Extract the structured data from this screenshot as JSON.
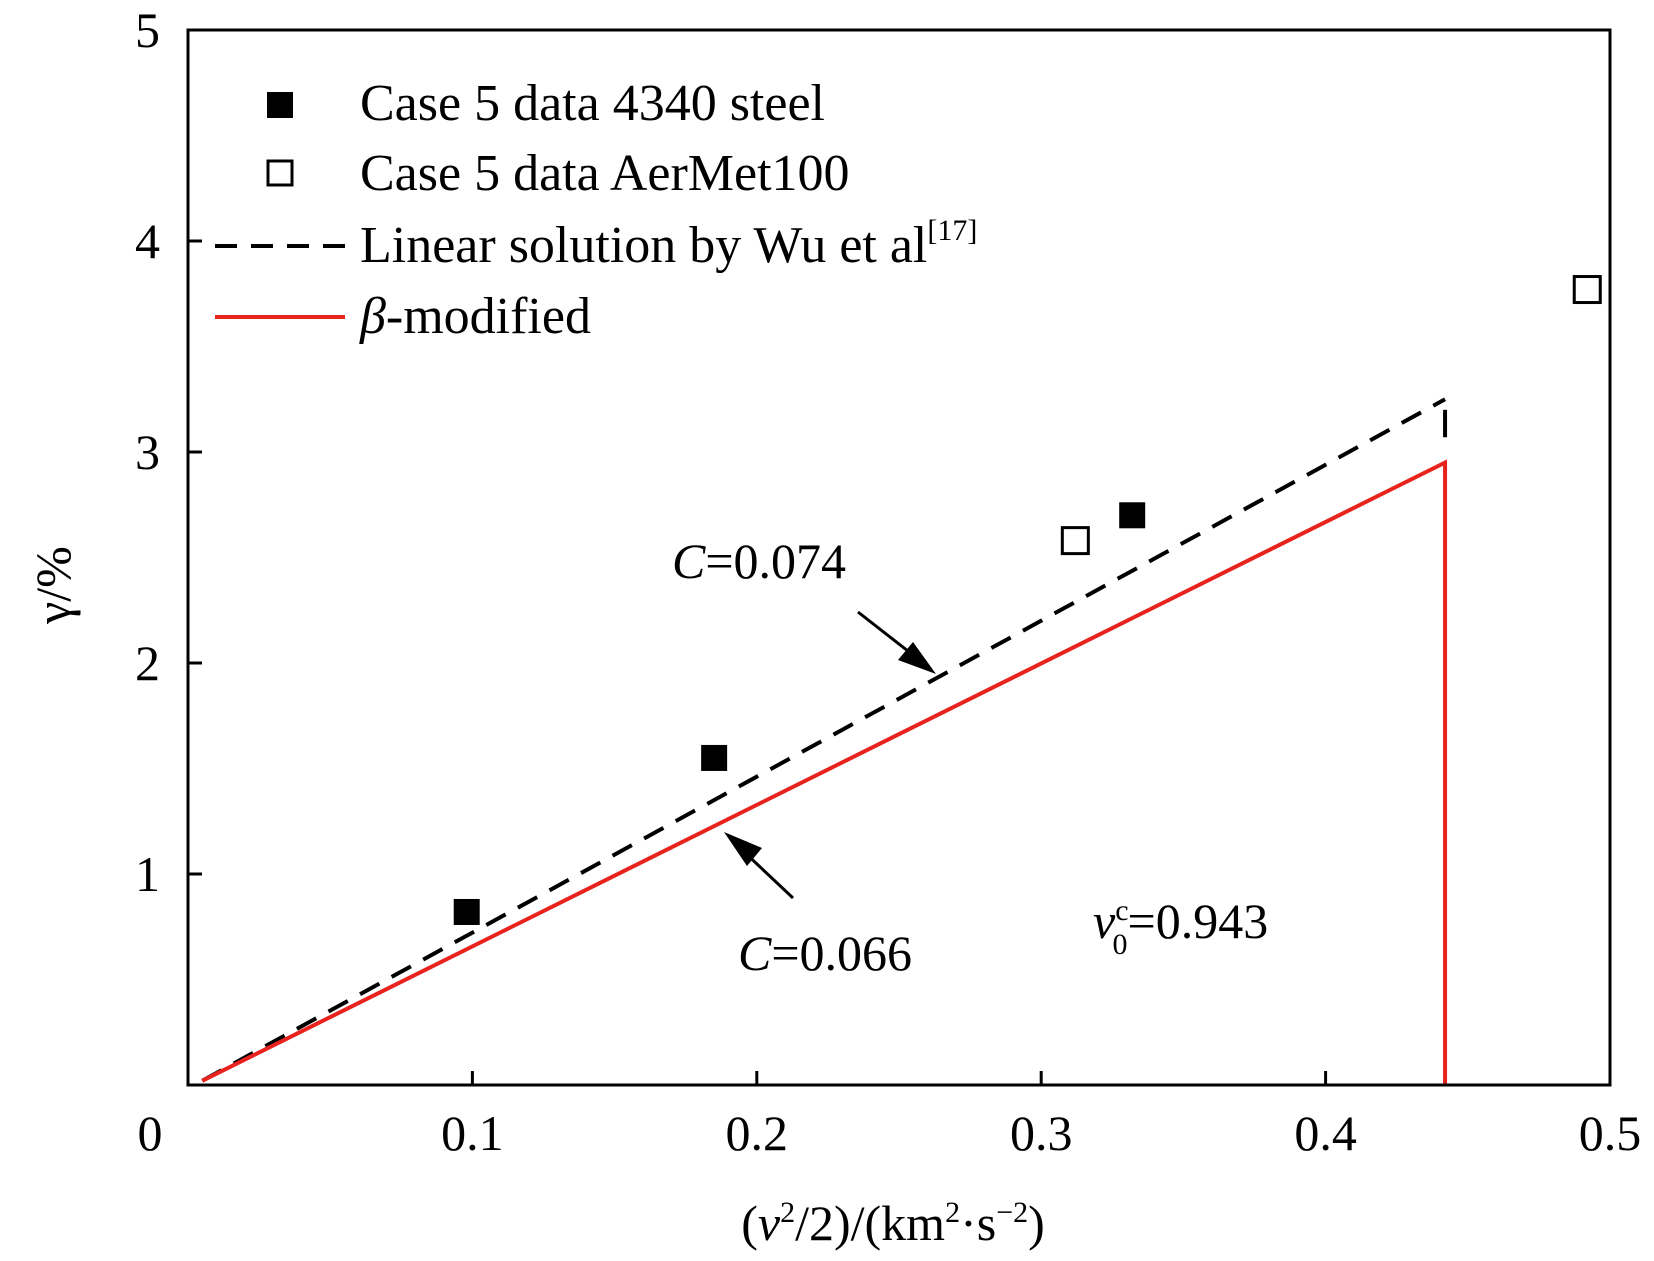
{
  "chart_data": {
    "type": "scatter",
    "xlabel": {
      "open": "(",
      "v": "v",
      "sq": "2",
      "mid": "/2)/(km",
      "sq2": "2",
      "dot": "·s",
      "exp": "−2",
      "close": ")"
    },
    "ylabel": "γ/%",
    "xlim": [
      0,
      0.5
    ],
    "ylim": [
      0,
      5
    ],
    "x_ticks": [
      "0",
      "0.1",
      "0.2",
      "0.3",
      "0.4",
      "0.5"
    ],
    "y_ticks": [
      "1",
      "2",
      "3",
      "4",
      "5"
    ],
    "series": [
      {
        "name": "Case 5 data 4340 steel",
        "kind": "marker-filled",
        "color": "#000000",
        "points": [
          [
            0.098,
            0.82
          ],
          [
            0.185,
            1.55
          ],
          [
            0.332,
            2.7
          ]
        ]
      },
      {
        "name": "Case 5 data AerMet100",
        "kind": "marker-open",
        "color": "#000000",
        "points": [
          [
            0.312,
            2.58
          ],
          [
            0.492,
            3.77
          ]
        ]
      },
      {
        "name": "Linear solution by Wu et al",
        "name_sup": "[17]",
        "kind": "dashed-line",
        "color": "#000000",
        "points": [
          [
            0.005,
            0.02
          ],
          [
            0.442,
            3.25
          ]
        ],
        "end_tick": [
          [
            0.442,
            3.2
          ],
          [
            0.442,
            3.07
          ]
        ]
      },
      {
        "name_italic": "β",
        "name": "-modified",
        "kind": "solid-line",
        "color": "#e8231d",
        "points": [
          [
            0.005,
            0.02
          ],
          [
            0.442,
            2.95
          ],
          [
            0.442,
            0.0
          ]
        ]
      }
    ],
    "annotations": [
      {
        "id": "c074",
        "italic": "C",
        "text": "=0.074"
      },
      {
        "id": "c066",
        "italic": "C",
        "text": "=0.066"
      },
      {
        "id": "v0c",
        "italic": "v",
        "sub": "0",
        "sup": "c",
        "text": "=0.943"
      }
    ],
    "legend_position": "top-left"
  }
}
